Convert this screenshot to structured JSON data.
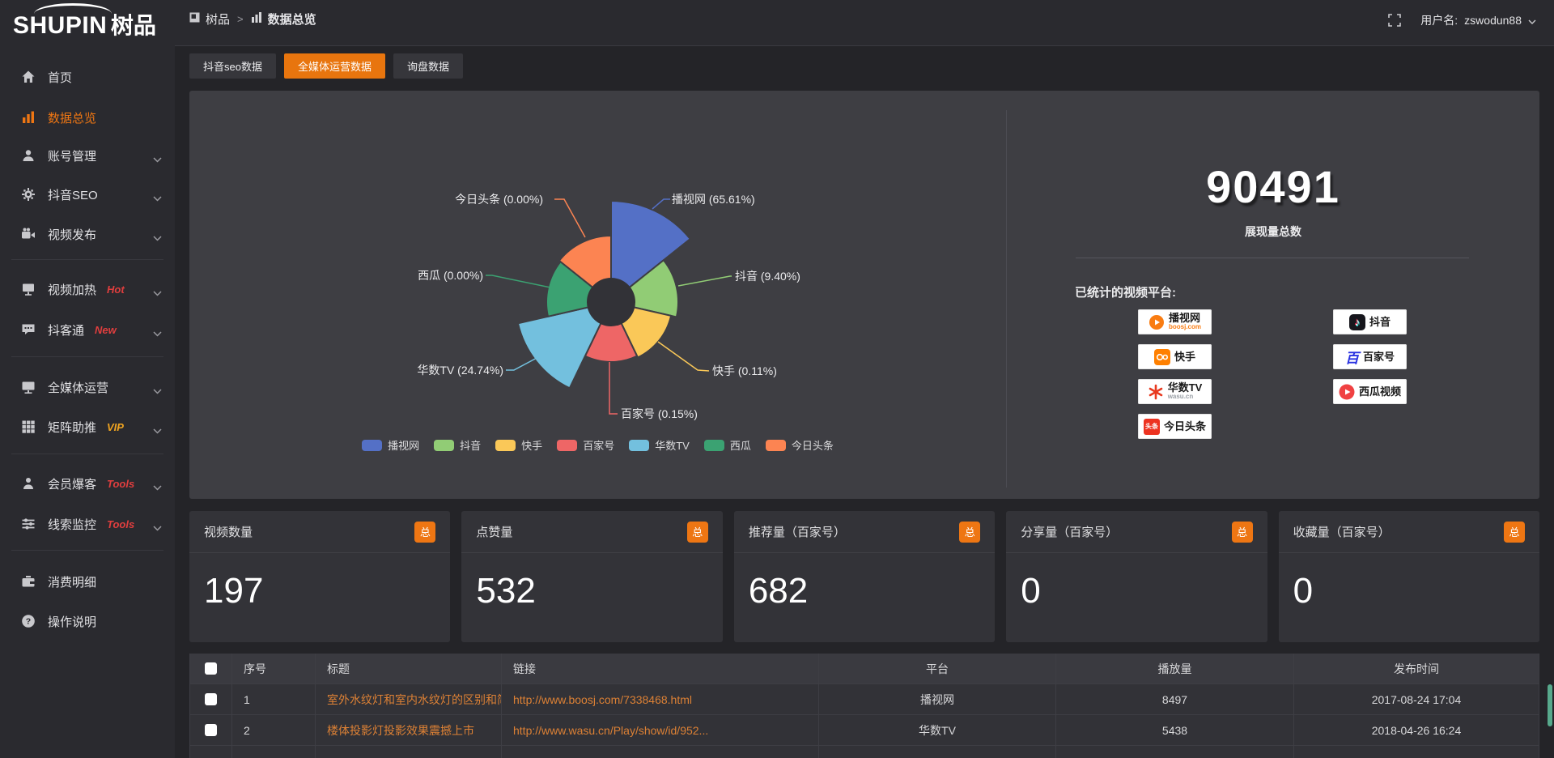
{
  "header": {
    "logo_en": "SHUPIN",
    "logo_cn": "树品",
    "breadcrumb_root": "树品",
    "breadcrumb_sep": ">",
    "breadcrumb_current": "数据总览",
    "username_label": "用户名:",
    "username": "zswodun88"
  },
  "sidebar": {
    "items": [
      {
        "label": "首页",
        "icon": "home",
        "chevron": false,
        "active": false,
        "badge": "",
        "badge_color": ""
      },
      {
        "label": "数据总览",
        "icon": "bar-chart",
        "chevron": false,
        "active": true,
        "badge": "",
        "badge_color": ""
      },
      {
        "label": "账号管理",
        "icon": "user",
        "chevron": true,
        "active": false,
        "badge": "",
        "badge_color": ""
      },
      {
        "label": "抖音SEO",
        "icon": "gear",
        "chevron": true,
        "active": false,
        "badge": "",
        "badge_color": ""
      },
      {
        "label": "视频发布",
        "icon": "video",
        "chevron": true,
        "active": false,
        "badge": "",
        "badge_color": "",
        "divider_after": true
      },
      {
        "label": "视频加热",
        "icon": "heat",
        "chevron": true,
        "active": false,
        "badge": "Hot",
        "badge_color": "#e03e3e"
      },
      {
        "label": "抖客通",
        "icon": "chat",
        "chevron": true,
        "active": false,
        "badge": "New",
        "badge_color": "#e03e3e",
        "divider_after": true
      },
      {
        "label": "全媒体运营",
        "icon": "monitor",
        "chevron": true,
        "active": false,
        "badge": "",
        "badge_color": ""
      },
      {
        "label": "矩阵助推",
        "icon": "grid",
        "chevron": true,
        "active": false,
        "badge": "VIP",
        "badge_color": "#f0a420",
        "divider_after": true
      },
      {
        "label": "会员爆客",
        "icon": "person",
        "chevron": true,
        "active": false,
        "badge": "Tools",
        "badge_color": "#e03e3e"
      },
      {
        "label": "线索监控",
        "icon": "sliders",
        "chevron": true,
        "active": false,
        "badge": "Tools",
        "badge_color": "#e03e3e",
        "divider_after": true
      },
      {
        "label": "消费明细",
        "icon": "wallet",
        "chevron": false,
        "active": false,
        "badge": "",
        "badge_color": ""
      },
      {
        "label": "操作说明",
        "icon": "help",
        "chevron": false,
        "active": false,
        "badge": "",
        "badge_color": ""
      }
    ]
  },
  "main": {
    "tabs": [
      {
        "label": "抖音seo数据",
        "active": false
      },
      {
        "label": "全媒体运营数据",
        "active": true
      },
      {
        "label": "询盘数据",
        "active": false
      }
    ],
    "overview_panel": {
      "total_value": "90491",
      "total_label": "展现量总数",
      "platforms_title": "已统计的视频平台:",
      "platforms": [
        {
          "name": "播视网",
          "sub": "boosj.com",
          "style": "boosj",
          "col": 0
        },
        {
          "name": "快手",
          "sub": "",
          "style": "kuaishou",
          "col": 0
        },
        {
          "name": "华数TV",
          "sub": "wasu.cn",
          "style": "wasu",
          "col": 0
        },
        {
          "name": "今日头条",
          "sub": "",
          "style": "toutiao",
          "col": 0
        },
        {
          "name": "抖音",
          "sub": "",
          "style": "douyin",
          "col": 1
        },
        {
          "name": "百家号",
          "sub": "",
          "style": "baijia",
          "col": 1
        },
        {
          "name": "西瓜视频",
          "sub": "",
          "style": "xigua",
          "col": 1
        }
      ]
    },
    "stats_cards": [
      {
        "title": "视频数量",
        "badge": "总",
        "value": "197"
      },
      {
        "title": "点赞量",
        "badge": "总",
        "value": "532"
      },
      {
        "title": "推荐量（百家号）",
        "badge": "总",
        "value": "682"
      },
      {
        "title": "分享量（百家号）",
        "badge": "总",
        "value": "0"
      },
      {
        "title": "收藏量（百家号）",
        "badge": "总",
        "value": "0"
      }
    ],
    "table": {
      "columns": [
        "序号",
        "标题",
        "链接",
        "平台",
        "播放量",
        "发布时间"
      ],
      "rows": [
        {
          "no": "1",
          "title": "室外水纹灯和室内水纹灯的区别和简介",
          "link": "http://www.boosj.com/7338468.html",
          "platform": "播视网",
          "plays": "8497",
          "time": "2017-08-24 17:04"
        },
        {
          "no": "2",
          "title": "楼体投影灯投影效果震撼上市",
          "link": "http://www.wasu.cn/Play/show/id/952...",
          "platform": "华数TV",
          "plays": "5438",
          "time": "2018-04-26 16:24"
        }
      ]
    }
  },
  "chart_data": {
    "type": "pie",
    "variant": "nightingale-rose",
    "title": "",
    "legend_position": "bottom",
    "total": {
      "value": 90491,
      "label": "展现量总数"
    },
    "slices": [
      {
        "name": "播视网",
        "label": "播视网 (65.61%)",
        "pct": 65.61,
        "color": "#5470c6",
        "radius_px": 125
      },
      {
        "name": "抖音",
        "label": "抖音 (9.40%)",
        "pct": 9.4,
        "color": "#91cc75",
        "radius_px": 83
      },
      {
        "name": "快手",
        "label": "快手 (0.11%)",
        "pct": 0.11,
        "color": "#fac858",
        "radius_px": 76
      },
      {
        "name": "百家号",
        "label": "百家号 (0.15%)",
        "pct": 0.15,
        "color": "#ee6666",
        "radius_px": 74
      },
      {
        "name": "华数TV",
        "label": "华数TV (24.74%)",
        "pct": 24.74,
        "color": "#73c0de",
        "radius_px": 118
      },
      {
        "name": "西瓜",
        "label": "西瓜 (0.00%)",
        "pct": 0.0,
        "color": "#3ba272",
        "radius_px": 80
      },
      {
        "name": "今日头条",
        "label": "今日头条 (0.00%)",
        "pct": 0.0,
        "color": "#fc8452",
        "radius_px": 82
      }
    ]
  },
  "colors": {
    "accent_orange": "#ee7613",
    "link_orange": "#dd8135",
    "panel_bg": "#3e3e43",
    "card_bg": "#333338",
    "sidebar_bg": "#2a2a2f",
    "page_bg": "#242428"
  }
}
